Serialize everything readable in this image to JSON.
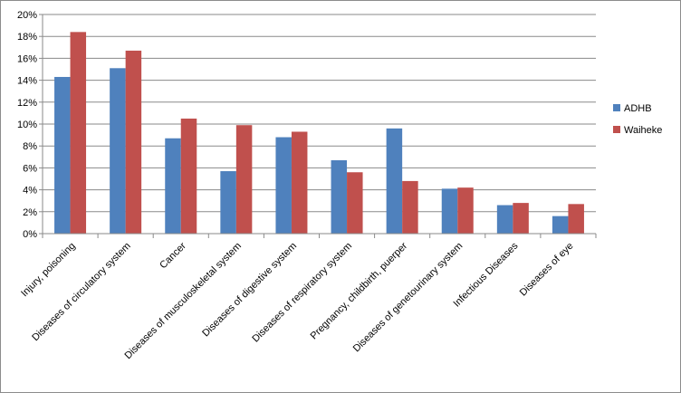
{
  "chart_data": {
    "type": "bar",
    "categories": [
      "Injury, poisoning",
      "Diseases of circulatory system",
      "Cancer",
      "Diseases of musculoskeletal system",
      "Diseases of digestive system",
      "Diseases of respiratory system",
      "Pregnancy, childbirth, puerper",
      "Diseases of genetourinary system",
      "Infectious Diseases",
      "Diseases of eye"
    ],
    "series": [
      {
        "name": "ADHB",
        "color": "#4f81bd",
        "values": [
          14.3,
          15.1,
          8.7,
          5.7,
          8.8,
          6.7,
          9.6,
          4.1,
          2.6,
          1.6
        ]
      },
      {
        "name": "Waiheke",
        "color": "#c0504d",
        "values": [
          18.4,
          16.7,
          10.5,
          9.9,
          9.3,
          5.6,
          4.8,
          4.2,
          2.8,
          2.7
        ]
      }
    ],
    "yticks": [
      "0%",
      "2%",
      "4%",
      "6%",
      "8%",
      "10%",
      "12%",
      "14%",
      "16%",
      "18%",
      "20%"
    ],
    "ylim": [
      0,
      20
    ],
    "grid": true,
    "legend_position": "right",
    "title": "",
    "xlabel": "",
    "ylabel": ""
  }
}
